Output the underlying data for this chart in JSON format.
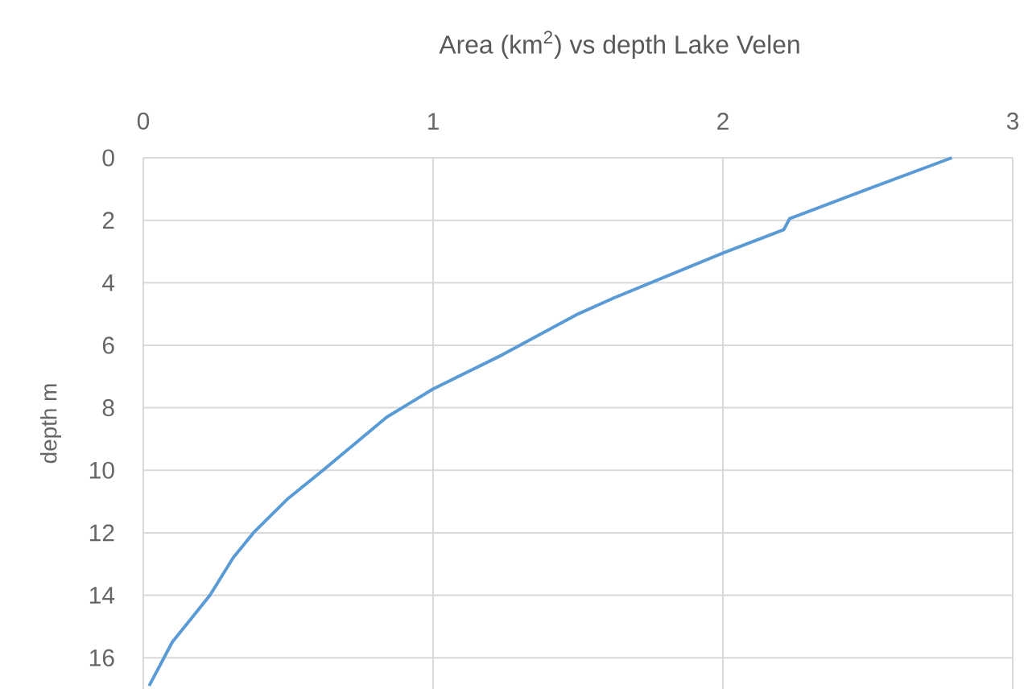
{
  "chart_data": {
    "type": "line",
    "title": "Area (km$^{2}$) vs depth Lake Velen",
    "ylabel": "depth m",
    "series": [
      {
        "color": "#5b9bd5",
        "x": [
          2.79,
          2.5,
          2.23,
          2.21,
          2.0,
          1.62,
          1.5,
          1.24,
          1.0,
          0.84,
          0.62,
          0.5,
          0.38,
          0.31,
          0.23,
          0.1,
          0.02
        ],
        "values": [
          0,
          1.0,
          1.95,
          2.3,
          3.05,
          4.5,
          5.0,
          6.3,
          7.4,
          8.3,
          10.0,
          10.9,
          12.0,
          12.8,
          14.0,
          15.5,
          16.9
        ]
      }
    ],
    "xlim": [
      0,
      3
    ],
    "xticks": [
      0,
      1,
      2,
      3
    ],
    "ylim": [
      17,
      0
    ],
    "yticks": [
      0,
      2,
      4,
      6,
      8,
      10,
      12,
      14,
      16
    ],
    "grid": true,
    "marker": "none",
    "line_style": "solid"
  }
}
